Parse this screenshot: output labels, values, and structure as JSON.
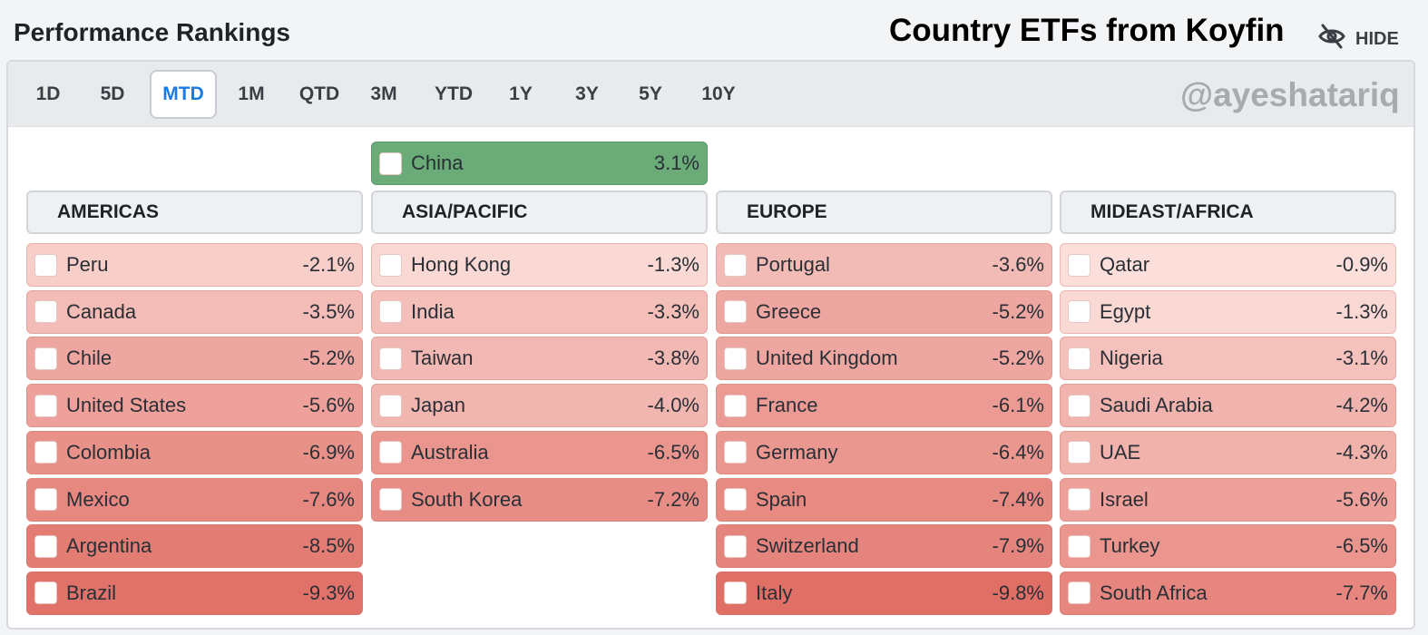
{
  "header": {
    "title": "Performance Rankings",
    "overlay_title": "Country ETFs from Koyfin",
    "hide_label": "HIDE",
    "hide_icon": "eye-slash-icon"
  },
  "tabs": [
    "1D",
    "5D",
    "MTD",
    "1M",
    "QTD",
    "3M",
    "YTD",
    "1Y",
    "3Y",
    "5Y",
    "10Y"
  ],
  "active_tab": "MTD",
  "watermark": "@ayeshatariq",
  "colors": {
    "positive": "#6aab78",
    "negative_light": "#fde3df",
    "negative_strong": "#e06f66",
    "active_tab_text": "#1a7ae8"
  },
  "regions": [
    {
      "name": "AMERICAS",
      "gainers": [],
      "items": [
        {
          "label": "Peru",
          "value": "-2.1%"
        },
        {
          "label": "Canada",
          "value": "-3.5%"
        },
        {
          "label": "Chile",
          "value": "-5.2%"
        },
        {
          "label": "United States",
          "value": "-5.6%"
        },
        {
          "label": "Colombia",
          "value": "-6.9%"
        },
        {
          "label": "Mexico",
          "value": "-7.6%"
        },
        {
          "label": "Argentina",
          "value": "-8.5%"
        },
        {
          "label": "Brazil",
          "value": "-9.3%"
        }
      ]
    },
    {
      "name": "ASIA/PACIFIC",
      "gainers": [
        {
          "label": "China",
          "value": "3.1%"
        }
      ],
      "items": [
        {
          "label": "Hong Kong",
          "value": "-1.3%"
        },
        {
          "label": "India",
          "value": "-3.3%"
        },
        {
          "label": "Taiwan",
          "value": "-3.8%"
        },
        {
          "label": "Japan",
          "value": "-4.0%"
        },
        {
          "label": "Australia",
          "value": "-6.5%"
        },
        {
          "label": "South Korea",
          "value": "-7.2%"
        }
      ]
    },
    {
      "name": "EUROPE",
      "gainers": [],
      "items": [
        {
          "label": "Portugal",
          "value": "-3.6%"
        },
        {
          "label": "Greece",
          "value": "-5.2%"
        },
        {
          "label": "United Kingdom",
          "value": "-5.2%"
        },
        {
          "label": "France",
          "value": "-6.1%"
        },
        {
          "label": "Germany",
          "value": "-6.4%"
        },
        {
          "label": "Spain",
          "value": "-7.4%"
        },
        {
          "label": "Switzerland",
          "value": "-7.9%"
        },
        {
          "label": "Italy",
          "value": "-9.8%"
        }
      ]
    },
    {
      "name": "MIDEAST/AFRICA",
      "gainers": [],
      "items": [
        {
          "label": "Qatar",
          "value": "-0.9%"
        },
        {
          "label": "Egypt",
          "value": "-1.3%"
        },
        {
          "label": "Nigeria",
          "value": "-3.1%"
        },
        {
          "label": "Saudi Arabia",
          "value": "-4.2%"
        },
        {
          "label": "UAE",
          "value": "-4.3%"
        },
        {
          "label": "Israel",
          "value": "-5.6%"
        },
        {
          "label": "Turkey",
          "value": "-6.5%"
        },
        {
          "label": "South Africa",
          "value": "-7.7%"
        }
      ]
    }
  ]
}
